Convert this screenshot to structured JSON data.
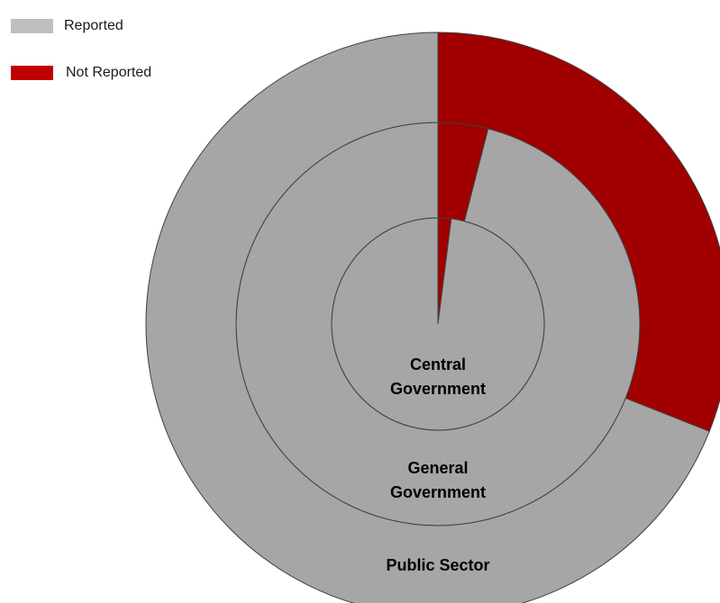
{
  "chart_data": {
    "type": "pie",
    "chart_variant": "nested donut",
    "legend": {
      "placement": "top-left",
      "items": [
        {
          "label": "Reported",
          "color": "#bfbfbf"
        },
        {
          "label": "Not Reported",
          "color": "#c00000"
        }
      ]
    },
    "categories": [
      "Not Reported",
      "Reported"
    ],
    "colors": {
      "reported": "#a6a6a6",
      "not_reported": "#a00000",
      "outline": "#404040"
    },
    "rings": [
      {
        "label": "Central Government",
        "label_lines": [
          "Central",
          "Government"
        ],
        "values": [
          2,
          98
        ]
      },
      {
        "label": "General Government",
        "label_lines": [
          "General",
          "Government"
        ],
        "values": [
          4,
          96
        ]
      },
      {
        "label": "Public Sector",
        "label_lines": [
          "Public Sector"
        ],
        "values": [
          31,
          69
        ]
      }
    ]
  }
}
